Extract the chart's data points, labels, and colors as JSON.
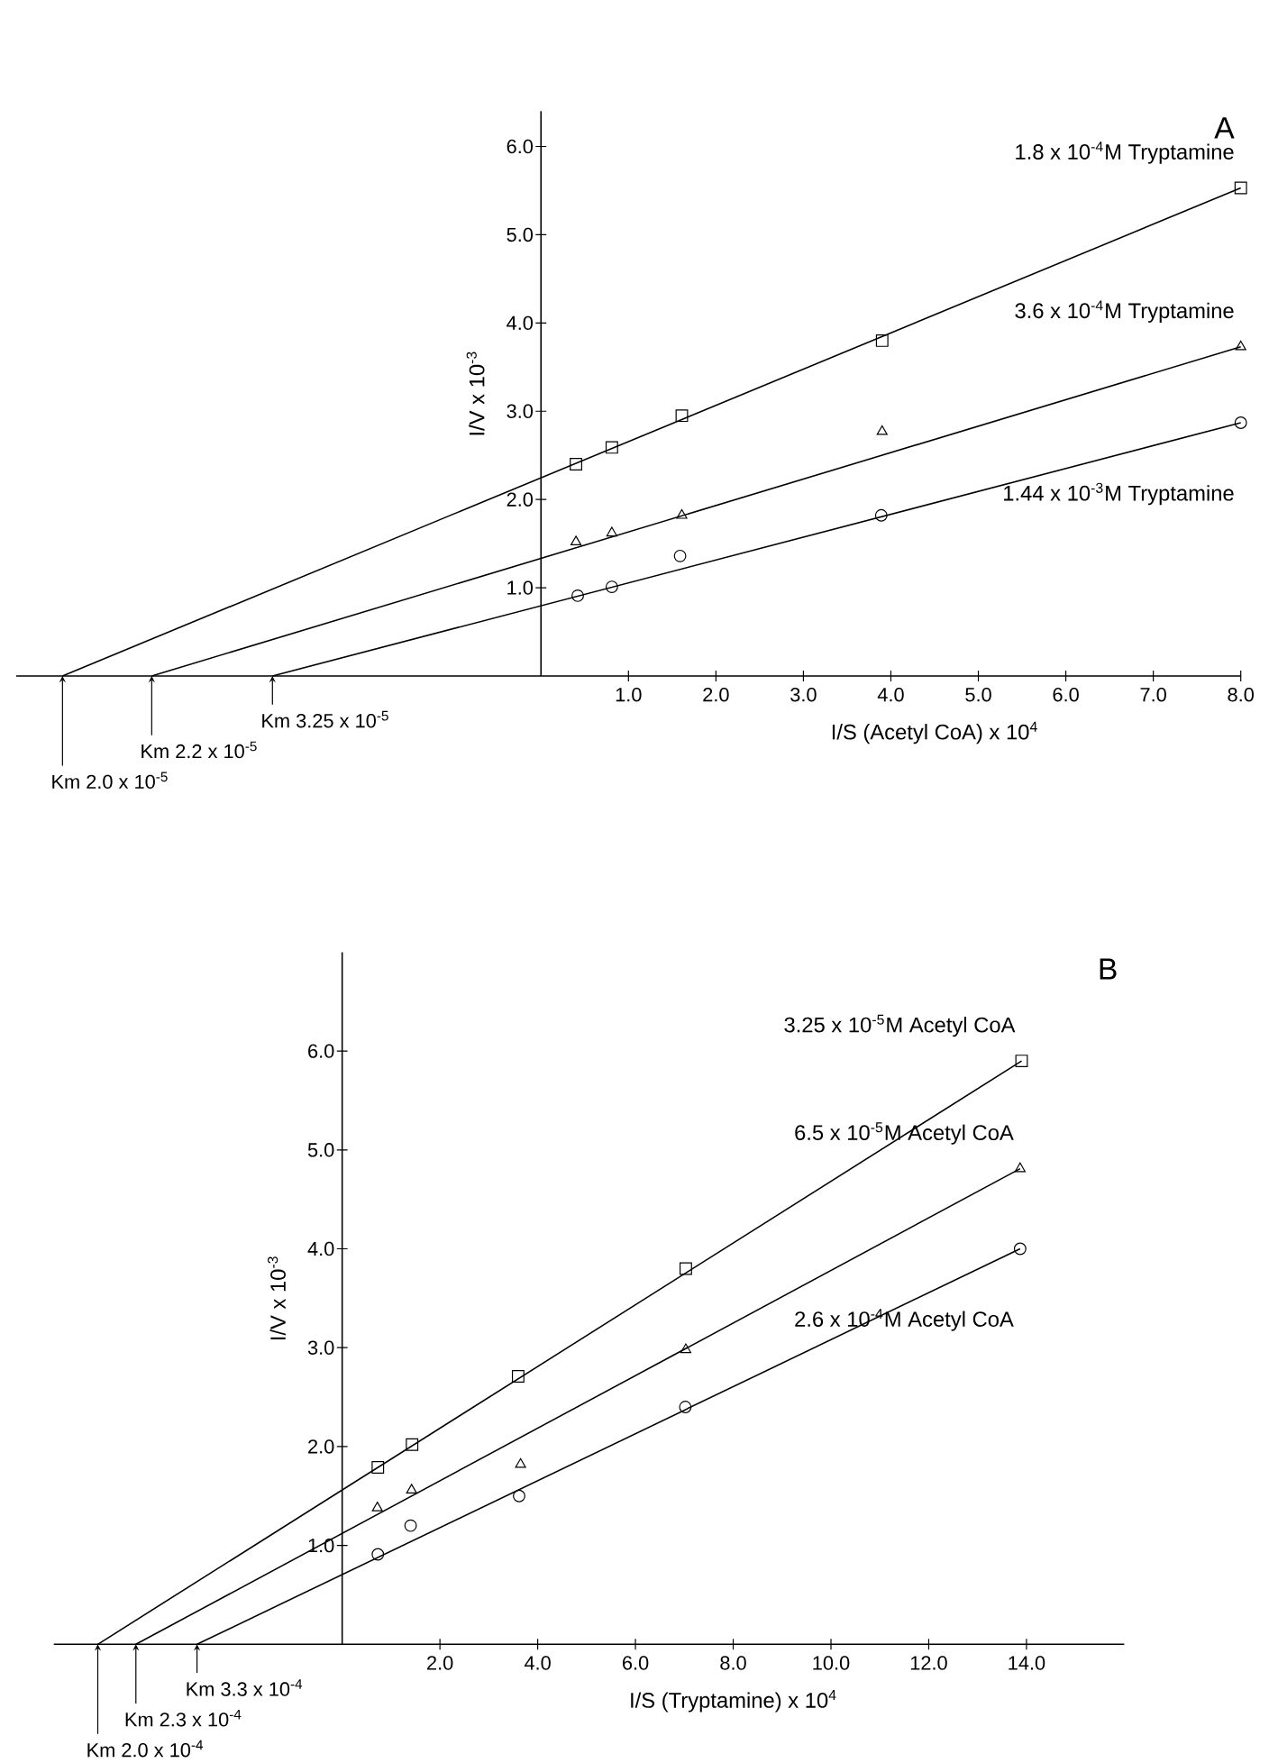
{
  "chart_data": [
    {
      "type": "scatter",
      "title": "A",
      "xlabel": "I/S (Acetyl CoA) x 10$^{4}$",
      "ylabel": "I/V x 10$^{-3}$",
      "xlim": [
        -6.0,
        8.0
      ],
      "ylim": [
        0,
        6.4
      ],
      "xticks": [
        {
          "value": 1,
          "label": "1.0"
        },
        {
          "value": 2,
          "label": "2.0"
        },
        {
          "value": 3,
          "label": "3.0"
        },
        {
          "value": 4,
          "label": "4.0"
        },
        {
          "value": 5,
          "label": "5.0"
        },
        {
          "value": 6,
          "label": "6.0"
        },
        {
          "value": 7,
          "label": "7.0"
        },
        {
          "value": 8,
          "label": "8.0"
        }
      ],
      "yticks": [
        {
          "value": 1,
          "label": "1.0"
        },
        {
          "value": 2,
          "label": "2.0"
        },
        {
          "value": 3,
          "label": "3.0"
        },
        {
          "value": 4,
          "label": "4.0"
        },
        {
          "value": 5,
          "label": "5.0"
        },
        {
          "value": 6,
          "label": "6.0"
        }
      ],
      "series": [
        {
          "name": "1.8 x 10$^{-4}$M Tryptamine",
          "color": "#000000",
          "marker": "square",
          "x": [
            0.4,
            0.81,
            1.61,
            3.9,
            8.0
          ],
          "values": [
            2.4,
            2.59,
            2.95,
            3.8,
            5.53
          ]
        },
        {
          "name": "3.6 x 10$^{-4}$M Tryptamine",
          "color": "#000000",
          "marker": "triangle",
          "x": [
            0.4,
            0.81,
            1.61,
            3.9,
            8.0
          ],
          "values": [
            1.52,
            1.62,
            1.82,
            2.77,
            3.73
          ]
        },
        {
          "name": "1.44 x 10$^{-3}$M Tryptamine",
          "color": "#000000",
          "marker": "circle",
          "x": [
            0.42,
            0.81,
            1.59,
            3.89,
            8.0
          ],
          "values": [
            0.91,
            1.01,
            1.36,
            1.82,
            2.87
          ]
        },
        {
          "type": "line",
          "color": "#000000",
          "marker": "none",
          "x": [
            -5.47,
            8.0
          ],
          "values": [
            0,
            5.53
          ]
        },
        {
          "type": "line",
          "color": "#000000",
          "marker": "none",
          "x": [
            -4.45,
            8.0
          ],
          "values": [
            0,
            3.73
          ]
        },
        {
          "type": "line",
          "color": "#000000",
          "marker": "none",
          "x": [
            -3.07,
            8.0
          ],
          "values": [
            0,
            2.87
          ]
        }
      ],
      "annotations": [
        {
          "text": "Km 2.0 x 10$^{-5}$",
          "x": -5.47,
          "y": 0
        },
        {
          "text": "Km 2.2 x 10$^{-5}$",
          "x": -4.45,
          "y": 0
        },
        {
          "text": "Km 3.25 x 10$^{-5}$",
          "x": -3.07,
          "y": 0
        }
      ]
    },
    {
      "type": "scatter",
      "title": "B",
      "xlabel": "I/S (Tryptamine) x 10$^{4}$",
      "ylabel": "I/V x 10$^{-3}$",
      "xlim": [
        -5.9,
        16.0
      ],
      "ylim": [
        0,
        7.0
      ],
      "xticks": [
        {
          "value": 2,
          "label": "2.0"
        },
        {
          "value": 4,
          "label": "4.0"
        },
        {
          "value": 6,
          "label": "6.0"
        },
        {
          "value": 8,
          "label": "8.0"
        },
        {
          "value": 10,
          "label": "10.0"
        },
        {
          "value": 12,
          "label": "12.0"
        },
        {
          "value": 14,
          "label": "14.0"
        }
      ],
      "yticks": [
        {
          "value": 1,
          "label": "1.0"
        },
        {
          "value": 2,
          "label": "2.0"
        },
        {
          "value": 3,
          "label": "3.0"
        },
        {
          "value": 4,
          "label": "4.0"
        },
        {
          "value": 5,
          "label": "5.0"
        },
        {
          "value": 6,
          "label": "6.0"
        }
      ],
      "series": [
        {
          "name": "3.25 x 10$^{-5}$M Acetyl CoA",
          "color": "#000000",
          "marker": "square",
          "x": [
            0.73,
            1.43,
            3.6,
            7.03,
            13.9
          ],
          "values": [
            1.79,
            2.02,
            2.71,
            3.8,
            5.9
          ]
        },
        {
          "name": "6.5 x 10$^{-5}$M Acetyl CoA",
          "color": "#000000",
          "marker": "triangle",
          "x": [
            0.72,
            1.42,
            3.65,
            7.03,
            13.87
          ],
          "values": [
            1.38,
            1.56,
            1.82,
            2.98,
            4.81
          ]
        },
        {
          "name": "2.6 x 10$^{-4}$M Acetyl CoA",
          "color": "#000000",
          "marker": "circle",
          "x": [
            0.73,
            1.4,
            3.62,
            7.02,
            13.87
          ],
          "values": [
            0.91,
            1.2,
            1.5,
            2.4,
            4.0
          ]
        },
        {
          "type": "line",
          "color": "#000000",
          "marker": "none",
          "x": [
            -5.0,
            13.9
          ],
          "values": [
            0,
            5.9
          ]
        },
        {
          "type": "line",
          "color": "#000000",
          "marker": "none",
          "x": [
            -4.22,
            13.87
          ],
          "values": [
            0,
            4.81
          ]
        },
        {
          "type": "line",
          "color": "#000000",
          "marker": "none",
          "x": [
            -2.97,
            13.87
          ],
          "values": [
            0,
            4.0
          ]
        }
      ],
      "annotations": [
        {
          "text": "Km 2.0 x 10$^{-4}$",
          "x": -5.0,
          "y": 0
        },
        {
          "text": "Km 2.3 x 10$^{-4}$",
          "x": -4.22,
          "y": 0
        },
        {
          "text": "Km 3.3 x 10$^{-4}$",
          "x": -2.97,
          "y": 0
        }
      ]
    }
  ]
}
